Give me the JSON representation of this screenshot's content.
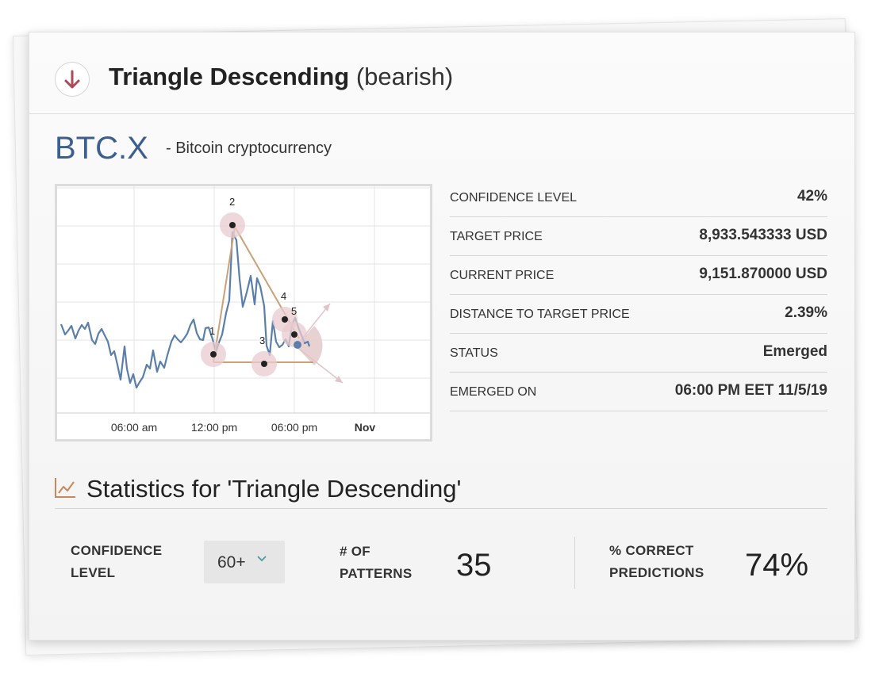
{
  "header": {
    "title": "Triangle Descending",
    "subtitle": "(bearish)",
    "direction_icon": "arrow-down-icon",
    "accent": "#b0495a"
  },
  "instrument": {
    "symbol": "BTC.X",
    "description": "- Bitcoin cryptocurrency",
    "symbol_color": "#3d5f8f"
  },
  "details": [
    {
      "label": "CONFIDENCE LEVEL",
      "value": "42%"
    },
    {
      "label": "TARGET PRICE",
      "value": "8,933.543333 USD"
    },
    {
      "label": "CURRENT PRICE",
      "value": "9,151.870000 USD"
    },
    {
      "label": "DISTANCE TO TARGET PRICE",
      "value": "2.39%"
    },
    {
      "label": "STATUS",
      "value": "Emerged"
    },
    {
      "label": "EMERGED ON",
      "value": "06:00 PM EET 11/5/19"
    }
  ],
  "chart_data": {
    "type": "line",
    "x_tick_labels": [
      "06:00 am",
      "12:00 pm",
      "06:00 pm",
      "Nov"
    ],
    "line_color": "#5b7fa8",
    "pattern_color": "#c9a27a",
    "pattern_points": [
      "1",
      "2",
      "3",
      "4",
      "5"
    ],
    "grid": true
  },
  "stats": {
    "title": "Statistics for 'Triangle Descending'",
    "icon": "line-chart-icon",
    "confidence_label_line1": "CONFIDENCE",
    "confidence_label_line2": "LEVEL",
    "confidence_selected": "60+",
    "patterns_label_line1": "# OF",
    "patterns_label_line2": "PATTERNS",
    "patterns_value": "35",
    "correct_label_line1": "% CORRECT",
    "correct_label_line2": "PREDICTIONS",
    "correct_value": "74%"
  }
}
